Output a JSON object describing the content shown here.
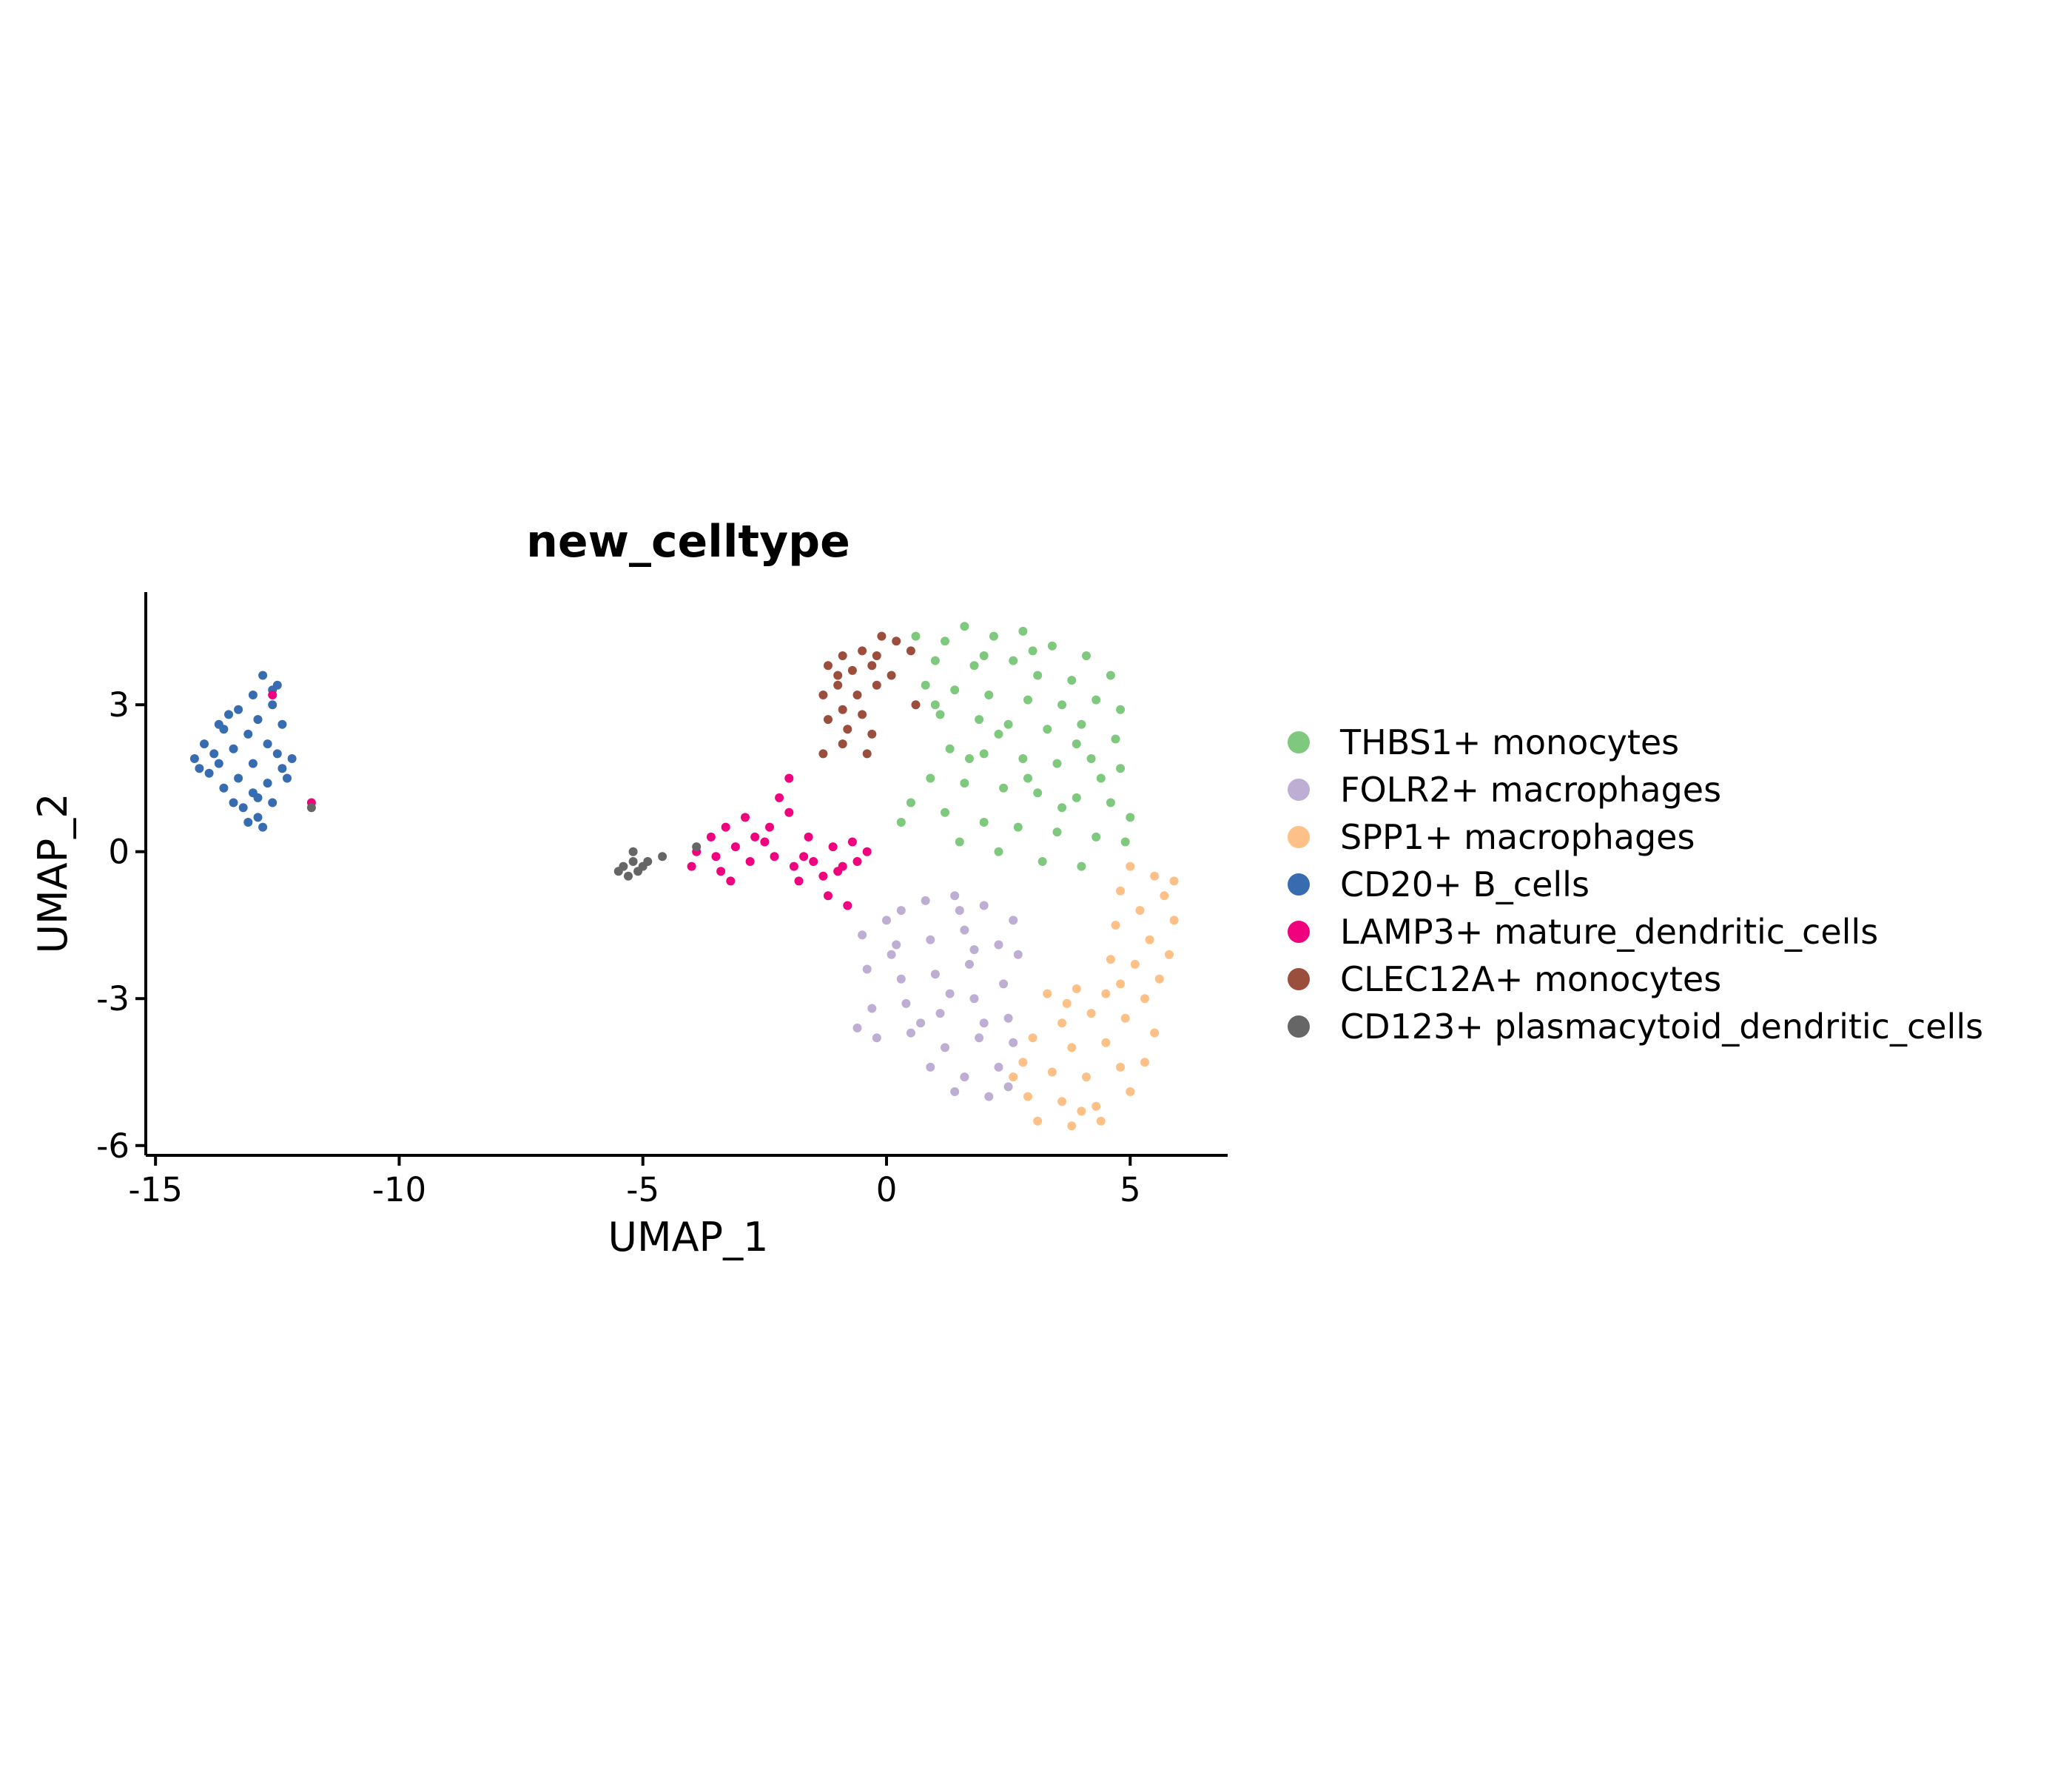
{
  "chart_data": {
    "type": "scatter",
    "title": "new_celltype",
    "xlabel": "UMAP_1",
    "ylabel": "UMAP_2",
    "xlim": [
      -15.2,
      7
    ],
    "ylim": [
      -6.2,
      5.3
    ],
    "xticks": [
      {
        "value": -15,
        "label": "-15"
      },
      {
        "value": -10,
        "label": "-10"
      },
      {
        "value": -5,
        "label": "-5"
      },
      {
        "value": 0,
        "label": "0"
      },
      {
        "value": 5,
        "label": "5"
      }
    ],
    "yticks": [
      {
        "value": 3,
        "label": "3"
      },
      {
        "value": 0,
        "label": "0"
      },
      {
        "value": -3,
        "label": "-3"
      },
      {
        "value": -6,
        "label": "-6"
      }
    ],
    "grid": false,
    "legend_position": "right",
    "point_style": "small filled dots",
    "series": [
      {
        "name": "THBS1+ monocytes",
        "color": "#7FC97F",
        "points": [
          [
            1.6,
            4.6
          ],
          [
            2.8,
            4.5
          ],
          [
            0.6,
            4.4
          ],
          [
            1.2,
            4.3
          ],
          [
            2.2,
            4.4
          ],
          [
            3.4,
            4.2
          ],
          [
            4.1,
            4.0
          ],
          [
            4.6,
            3.6
          ],
          [
            1.0,
            3.9
          ],
          [
            1.8,
            3.8
          ],
          [
            2.6,
            3.9
          ],
          [
            3.1,
            3.6
          ],
          [
            3.8,
            3.5
          ],
          [
            0.8,
            3.4
          ],
          [
            1.4,
            3.3
          ],
          [
            2.1,
            3.2
          ],
          [
            2.9,
            3.1
          ],
          [
            3.6,
            3.0
          ],
          [
            4.3,
            3.1
          ],
          [
            4.8,
            2.9
          ],
          [
            1.1,
            2.8
          ],
          [
            1.9,
            2.7
          ],
          [
            2.5,
            2.6
          ],
          [
            3.3,
            2.5
          ],
          [
            4.0,
            2.6
          ],
          [
            4.7,
            2.3
          ],
          [
            1.3,
            2.1
          ],
          [
            2.0,
            2.0
          ],
          [
            2.8,
            1.9
          ],
          [
            3.5,
            1.8
          ],
          [
            4.2,
            1.9
          ],
          [
            4.8,
            1.7
          ],
          [
            0.9,
            1.5
          ],
          [
            1.6,
            1.4
          ],
          [
            2.4,
            1.3
          ],
          [
            3.1,
            1.2
          ],
          [
            3.9,
            1.1
          ],
          [
            4.6,
            1.0
          ],
          [
            0.5,
            1.0
          ],
          [
            1.2,
            0.8
          ],
          [
            2.0,
            0.6
          ],
          [
            2.7,
            0.5
          ],
          [
            3.5,
            0.4
          ],
          [
            4.3,
            0.3
          ],
          [
            4.9,
            0.2
          ],
          [
            0.3,
            0.6
          ],
          [
            1.5,
            0.2
          ],
          [
            2.3,
            0.0
          ],
          [
            3.2,
            -0.2
          ],
          [
            4.0,
            -0.3
          ],
          [
            5.0,
            0.7
          ],
          [
            3.0,
            4.1
          ],
          [
            2.0,
            4.0
          ],
          [
            1.0,
            3.0
          ],
          [
            3.9,
            2.2
          ],
          [
            2.3,
            2.4
          ],
          [
            3.6,
            0.9
          ],
          [
            4.4,
            1.5
          ],
          [
            1.7,
            1.9
          ],
          [
            2.9,
            1.5
          ]
        ]
      },
      {
        "name": "FOLR2+ macrophages",
        "color": "#BEAED4",
        "points": [
          [
            0.3,
            -1.2
          ],
          [
            0.8,
            -1.0
          ],
          [
            1.4,
            -0.9
          ],
          [
            2.0,
            -1.1
          ],
          [
            2.6,
            -1.4
          ],
          [
            -0.5,
            -1.7
          ],
          [
            0.2,
            -1.9
          ],
          [
            0.9,
            -1.8
          ],
          [
            1.6,
            -1.6
          ],
          [
            2.3,
            -1.9
          ],
          [
            2.7,
            -2.1
          ],
          [
            -0.4,
            -2.4
          ],
          [
            0.3,
            -2.6
          ],
          [
            1.0,
            -2.5
          ],
          [
            1.7,
            -2.3
          ],
          [
            2.4,
            -2.7
          ],
          [
            -0.3,
            -3.2
          ],
          [
            0.4,
            -3.1
          ],
          [
            1.1,
            -3.3
          ],
          [
            1.8,
            -3.0
          ],
          [
            2.5,
            -3.4
          ],
          [
            -0.2,
            -3.8
          ],
          [
            0.5,
            -3.7
          ],
          [
            1.2,
            -4.0
          ],
          [
            1.9,
            -3.8
          ],
          [
            2.6,
            -3.9
          ],
          [
            0.9,
            -4.4
          ],
          [
            1.6,
            -4.6
          ],
          [
            2.3,
            -4.4
          ],
          [
            1.4,
            -4.9
          ],
          [
            2.1,
            -5.0
          ],
          [
            0.1,
            -2.1
          ],
          [
            1.3,
            -2.9
          ],
          [
            2.0,
            -3.5
          ],
          [
            0.7,
            -3.5
          ],
          [
            -0.6,
            -3.6
          ],
          [
            1.5,
            -1.2
          ],
          [
            2.5,
            -4.8
          ],
          [
            0.0,
            -1.4
          ],
          [
            1.8,
            -2.0
          ]
        ]
      },
      {
        "name": "SPP1+ macrophages",
        "color": "#FDC086",
        "points": [
          [
            5.0,
            -0.3
          ],
          [
            5.5,
            -0.5
          ],
          [
            4.8,
            -0.8
          ],
          [
            5.7,
            -0.9
          ],
          [
            5.2,
            -1.2
          ],
          [
            5.9,
            -1.4
          ],
          [
            4.7,
            -1.5
          ],
          [
            5.4,
            -1.8
          ],
          [
            5.8,
            -2.1
          ],
          [
            5.1,
            -2.3
          ],
          [
            5.6,
            -2.6
          ],
          [
            4.8,
            -2.7
          ],
          [
            5.3,
            -3.0
          ],
          [
            4.5,
            -2.9
          ],
          [
            3.9,
            -2.8
          ],
          [
            3.3,
            -2.9
          ],
          [
            4.2,
            -3.3
          ],
          [
            3.6,
            -3.5
          ],
          [
            4.9,
            -3.4
          ],
          [
            3.0,
            -3.8
          ],
          [
            3.8,
            -4.0
          ],
          [
            4.5,
            -3.9
          ],
          [
            2.8,
            -4.3
          ],
          [
            3.4,
            -4.5
          ],
          [
            4.1,
            -4.6
          ],
          [
            4.8,
            -4.4
          ],
          [
            5.3,
            -4.3
          ],
          [
            2.9,
            -5.0
          ],
          [
            3.6,
            -5.1
          ],
          [
            4.3,
            -5.2
          ],
          [
            5.0,
            -4.9
          ],
          [
            3.1,
            -5.5
          ],
          [
            3.8,
            -5.6
          ],
          [
            4.4,
            -5.5
          ],
          [
            2.6,
            -4.6
          ],
          [
            5.5,
            -3.7
          ],
          [
            4.6,
            -2.2
          ],
          [
            5.9,
            -0.6
          ],
          [
            3.7,
            -3.1
          ],
          [
            4.0,
            -5.3
          ]
        ]
      },
      {
        "name": "CD20+ B_cells",
        "color": "#386CB0",
        "points": [
          [
            -12.8,
            3.6
          ],
          [
            -12.5,
            3.4
          ],
          [
            -13.0,
            3.2
          ],
          [
            -12.6,
            3.0
          ],
          [
            -13.3,
            2.9
          ],
          [
            -12.9,
            2.7
          ],
          [
            -13.6,
            2.5
          ],
          [
            -13.1,
            2.4
          ],
          [
            -12.7,
            2.2
          ],
          [
            -14.0,
            2.2
          ],
          [
            -13.4,
            2.1
          ],
          [
            -12.5,
            2.0
          ],
          [
            -14.2,
            1.9
          ],
          [
            -13.7,
            1.8
          ],
          [
            -13.0,
            1.8
          ],
          [
            -12.4,
            1.7
          ],
          [
            -13.9,
            1.6
          ],
          [
            -13.3,
            1.5
          ],
          [
            -12.7,
            1.4
          ],
          [
            -12.3,
            1.5
          ],
          [
            -13.6,
            1.3
          ],
          [
            -13.0,
            1.2
          ],
          [
            -12.6,
            1.0
          ],
          [
            -13.2,
            0.9
          ],
          [
            -12.9,
            0.7
          ],
          [
            -12.8,
            0.5
          ],
          [
            -13.5,
            2.8
          ],
          [
            -12.2,
            1.9
          ],
          [
            -14.1,
            1.7
          ],
          [
            -13.8,
            2.0
          ],
          [
            -12.9,
            1.1
          ],
          [
            -13.1,
            0.6
          ],
          [
            -12.4,
            2.6
          ],
          [
            -13.4,
            1.0
          ],
          [
            -12.6,
            3.3
          ],
          [
            -13.7,
            2.6
          ]
        ]
      },
      {
        "name": "LAMP3+ mature_dendritic_cells",
        "color": "#F0027F",
        "points": [
          [
            -2.2,
            1.1
          ],
          [
            -2.0,
            0.8
          ],
          [
            -2.4,
            0.5
          ],
          [
            -2.9,
            0.7
          ],
          [
            -3.3,
            0.5
          ],
          [
            -3.6,
            0.3
          ],
          [
            -3.1,
            0.1
          ],
          [
            -3.5,
            -0.1
          ],
          [
            -3.9,
            0.0
          ],
          [
            -3.4,
            -0.4
          ],
          [
            -2.8,
            -0.2
          ],
          [
            -2.3,
            -0.1
          ],
          [
            -1.9,
            -0.3
          ],
          [
            -1.5,
            -0.2
          ],
          [
            -1.1,
            0.1
          ],
          [
            -0.7,
            0.2
          ],
          [
            -0.4,
            0.0
          ],
          [
            -0.9,
            -0.3
          ],
          [
            -1.3,
            -0.5
          ],
          [
            -1.8,
            -0.6
          ],
          [
            -2.5,
            0.2
          ],
          [
            -1.6,
            0.3
          ],
          [
            -0.6,
            -0.2
          ],
          [
            -3.2,
            -0.6
          ],
          [
            -1.2,
            -0.9
          ],
          [
            -0.8,
            -1.1
          ],
          [
            -4.0,
            -0.3
          ],
          [
            -2.0,
            1.5
          ],
          [
            -1.7,
            -0.1
          ],
          [
            -1.0,
            -0.4
          ],
          [
            -2.7,
            0.3
          ],
          [
            -11.8,
            1.0
          ],
          [
            -12.6,
            3.2
          ]
        ]
      },
      {
        "name": "CLEC12A+ monocytes",
        "color": "#9C4E3D",
        "points": [
          [
            -0.1,
            4.4
          ],
          [
            0.2,
            4.3
          ],
          [
            0.5,
            4.1
          ],
          [
            -0.5,
            4.1
          ],
          [
            -0.9,
            4.0
          ],
          [
            -1.2,
            3.8
          ],
          [
            -0.7,
            3.7
          ],
          [
            -0.3,
            3.8
          ],
          [
            0.1,
            3.6
          ],
          [
            -1.0,
            3.4
          ],
          [
            -1.3,
            3.2
          ],
          [
            -0.6,
            3.2
          ],
          [
            -0.2,
            3.4
          ],
          [
            -0.9,
            2.9
          ],
          [
            -0.5,
            2.8
          ],
          [
            -1.2,
            2.7
          ],
          [
            -0.8,
            2.5
          ],
          [
            -0.3,
            2.4
          ],
          [
            -0.9,
            2.2
          ],
          [
            -0.4,
            2.0
          ],
          [
            -1.3,
            2.0
          ],
          [
            0.6,
            3.0
          ],
          [
            -0.2,
            4.0
          ],
          [
            -1.0,
            3.6
          ]
        ]
      },
      {
        "name": "CD123+ plasmacytoid_dendritic_cells",
        "color": "#666666",
        "points": [
          [
            -5.4,
            -0.3
          ],
          [
            -5.2,
            -0.2
          ],
          [
            -5.0,
            -0.3
          ],
          [
            -5.3,
            -0.5
          ],
          [
            -5.5,
            -0.4
          ],
          [
            -5.1,
            -0.4
          ],
          [
            -4.9,
            -0.2
          ],
          [
            -5.2,
            0.0
          ],
          [
            -4.6,
            -0.1
          ],
          [
            -3.9,
            0.1
          ],
          [
            -11.8,
            0.9
          ]
        ]
      }
    ]
  }
}
